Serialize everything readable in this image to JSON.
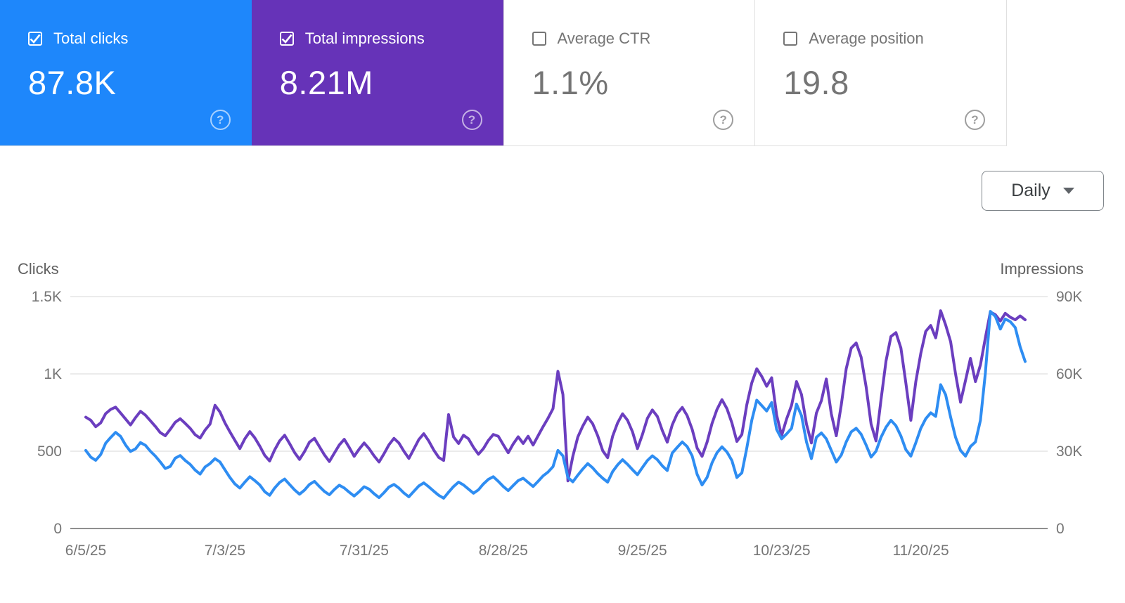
{
  "summary_cards": [
    {
      "label": "Total clicks",
      "value": "87.8K",
      "checked": true,
      "bg": "#1e87fb",
      "help_glyph": "?"
    },
    {
      "label": "Total impressions",
      "value": "8.21M",
      "checked": true,
      "bg": "#6633b8",
      "help_glyph": "?"
    },
    {
      "label": "Average CTR",
      "value": "1.1%",
      "checked": false,
      "bg": "#ffffff",
      "help_glyph": "?"
    },
    {
      "label": "Average position",
      "value": "19.8",
      "checked": false,
      "bg": "#ffffff",
      "help_glyph": "?"
    }
  ],
  "granularity_dropdown": {
    "value": "Daily"
  },
  "colors": {
    "clicks_line": "#2e8df2",
    "impressions_line": "#6b3ebf",
    "grid": "#ebebeb",
    "zero_axis": "#8f8f8f",
    "tick_text": "#757575"
  },
  "chart_data": {
    "type": "line",
    "frequency": "daily",
    "start_date": "6/5/25",
    "x_tick_labels": [
      {
        "label": "6/5/25",
        "index": 0
      },
      {
        "label": "7/3/25",
        "index": 28
      },
      {
        "label": "7/31/25",
        "index": 56
      },
      {
        "label": "8/28/25",
        "index": 84
      },
      {
        "label": "9/25/25",
        "index": 112
      },
      {
        "label": "10/23/25",
        "index": 140
      },
      {
        "label": "11/20/25",
        "index": 168
      }
    ],
    "left_axis": {
      "title": "Clicks",
      "ticks": [
        "0",
        "500",
        "1K",
        "1.5K"
      ],
      "max": 1500
    },
    "right_axis": {
      "title": "Impressions",
      "ticks": [
        "0",
        "30K",
        "60K",
        "90K"
      ],
      "max": 90000
    },
    "legend_position": "none",
    "grid": true,
    "series": [
      {
        "name": "Clicks",
        "axis": "left",
        "color": "#2e8df2",
        "values": [
          505,
          462,
          441,
          478,
          552,
          588,
          622,
          596,
          540,
          498,
          515,
          556,
          538,
          500,
          468,
          430,
          388,
          402,
          455,
          472,
          440,
          415,
          378,
          352,
          398,
          420,
          452,
          430,
          380,
          330,
          288,
          262,
          300,
          335,
          310,
          282,
          238,
          215,
          262,
          298,
          320,
          285,
          250,
          222,
          248,
          285,
          305,
          272,
          240,
          218,
          252,
          280,
          262,
          235,
          210,
          238,
          270,
          255,
          225,
          200,
          232,
          268,
          285,
          262,
          230,
          205,
          240,
          275,
          295,
          270,
          242,
          215,
          196,
          235,
          272,
          300,
          282,
          255,
          228,
          250,
          288,
          318,
          335,
          305,
          272,
          245,
          278,
          310,
          325,
          298,
          272,
          305,
          340,
          365,
          400,
          505,
          470,
          330,
          302,
          345,
          385,
          420,
          392,
          355,
          325,
          300,
          368,
          412,
          445,
          415,
          380,
          348,
          395,
          440,
          470,
          445,
          405,
          375,
          488,
          525,
          560,
          530,
          470,
          350,
          282,
          330,
          425,
          490,
          528,
          495,
          440,
          330,
          360,
          520,
          700,
          830,
          795,
          760,
          815,
          640,
          580,
          612,
          648,
          805,
          730,
          560,
          452,
          590,
          618,
          580,
          505,
          430,
          475,
          560,
          625,
          648,
          610,
          540,
          462,
          500,
          590,
          655,
          700,
          665,
          598,
          510,
          468,
          555,
          648,
          710,
          748,
          725,
          930,
          865,
          720,
          590,
          505,
          468,
          530,
          560,
          700,
          1005,
          1404,
          1372,
          1290,
          1355,
          1338,
          1300,
          1175,
          1080
        ]
      },
      {
        "name": "Impressions",
        "axis": "right",
        "color": "#6b3ebf",
        "values": [
          43200,
          42000,
          39500,
          41000,
          44600,
          46200,
          47100,
          44800,
          42500,
          40200,
          43000,
          45500,
          44000,
          41800,
          39600,
          37200,
          36000,
          38500,
          41200,
          42600,
          40800,
          38900,
          36400,
          35100,
          38200,
          40500,
          47800,
          45200,
          41000,
          37500,
          34200,
          31000,
          34800,
          37600,
          35200,
          32000,
          28400,
          26200,
          30500,
          34000,
          36200,
          33000,
          29500,
          26800,
          29800,
          33500,
          35000,
          31800,
          28600,
          26000,
          29200,
          32400,
          34600,
          31500,
          28000,
          30800,
          33200,
          31000,
          28200,
          25800,
          29000,
          32500,
          35000,
          33200,
          30000,
          27200,
          30800,
          34500,
          36800,
          34000,
          30500,
          27600,
          26400,
          44200,
          35500,
          33000,
          36200,
          34800,
          31500,
          28800,
          31000,
          34200,
          36500,
          35800,
          32500,
          29400,
          32800,
          35600,
          33000,
          35800,
          32400,
          36000,
          39500,
          42800,
          46500,
          61000,
          52000,
          18500,
          28000,
          35500,
          39800,
          43200,
          40600,
          36000,
          30200,
          27500,
          35800,
          41000,
          44500,
          42000,
          37500,
          31000,
          36500,
          42800,
          46000,
          43500,
          38000,
          33500,
          40200,
          44600,
          47000,
          43800,
          38500,
          31200,
          28000,
          33500,
          40800,
          46200,
          50000,
          46500,
          41000,
          33800,
          36500,
          48000,
          56500,
          62000,
          59000,
          55200,
          58500,
          44000,
          36000,
          42500,
          47800,
          57000,
          52000,
          40500,
          33200,
          44800,
          49600,
          58000,
          44500,
          36000,
          48000,
          62000,
          70000,
          72000,
          66500,
          55000,
          40500,
          34000,
          50000,
          65000,
          74500,
          76000,
          70000,
          56500,
          42000,
          57000,
          68000,
          76500,
          78800,
          74000,
          84500,
          79000,
          72500,
          60000,
          49000,
          57500,
          66000,
          57000,
          63500,
          74000,
          84000,
          83000,
          80500,
          83500,
          82000,
          81000,
          82500,
          81000
        ]
      }
    ]
  }
}
